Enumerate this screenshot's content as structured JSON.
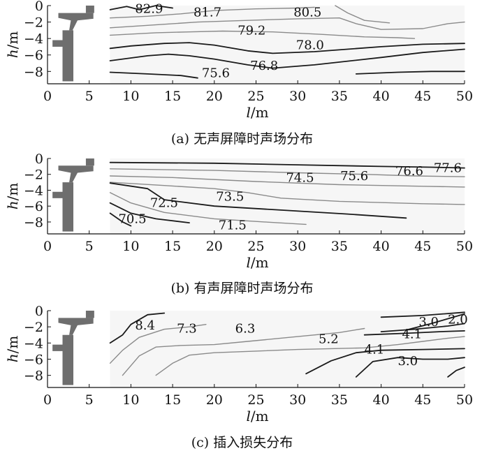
{
  "figure": {
    "colors": {
      "dark_contour": "#1a1a1a",
      "gray_contour": "#8a8a8a",
      "plot_bg": "#f6f6f6",
      "structure": "#6e6e6e"
    }
  },
  "chart_data": [
    {
      "type": "contour",
      "xlabel": "l/m",
      "ylabel": "h/m",
      "xlabel_parts": [
        "l",
        "/m"
      ],
      "ylabel_parts": [
        "h",
        "/m"
      ],
      "xlim": [
        0,
        50
      ],
      "ylim": [
        -9.5,
        0
      ],
      "xticks": [
        0,
        5,
        10,
        15,
        20,
        25,
        30,
        35,
        40,
        45,
        50
      ],
      "yticks": [
        0,
        -2,
        -4,
        -6,
        -8
      ],
      "caption": "(a) 无声屏障时声场分布",
      "contour_labels": [
        {
          "text": "82.9",
          "x": 10.5,
          "y": -0.4
        },
        {
          "text": "81.7",
          "x": 17.5,
          "y": -0.8
        },
        {
          "text": "80.5",
          "x": 29.5,
          "y": -0.8
        },
        {
          "text": "79.2",
          "x": 22.8,
          "y": -3.0
        },
        {
          "text": "78.0",
          "x": 29.8,
          "y": -4.8
        },
        {
          "text": "76.8",
          "x": 24.3,
          "y": -7.3
        },
        {
          "text": "75.6",
          "x": 18.5,
          "y": -8.2
        }
      ],
      "contours": [
        {
          "level": "82.9",
          "tone": "dark",
          "points": [
            [
              7.5,
              -0.5
            ],
            [
              9.5,
              -0.1
            ],
            [
              11,
              -0.5
            ],
            [
              13,
              0
            ],
            [
              15,
              -0.3
            ]
          ]
        },
        {
          "level": "81.7",
          "tone": "gray",
          "points": [
            [
              7.5,
              -1.5
            ],
            [
              12,
              -1.3
            ],
            [
              16,
              -1.0
            ],
            [
              20,
              -0.6
            ],
            [
              25,
              -0.4
            ],
            [
              30,
              -0.3
            ],
            [
              32,
              -0.2
            ]
          ]
        },
        {
          "level": "80.5",
          "tone": "gray",
          "points": [
            [
              7.5,
              -2.7
            ],
            [
              12,
              -2.4
            ],
            [
              18,
              -2.0
            ],
            [
              24,
              -1.8
            ],
            [
              30,
              -1.6
            ],
            [
              35,
              -1.5
            ],
            [
              37,
              -2.2
            ],
            [
              40,
              -2.9
            ],
            [
              45,
              -2.8
            ],
            [
              48,
              -2.2
            ],
            [
              50,
              -2.0
            ]
          ]
        },
        {
          "level": "79.2",
          "tone": "gray",
          "points": [
            [
              7.5,
              -3.6
            ],
            [
              13,
              -3.3
            ],
            [
              17,
              -3.2
            ],
            [
              21,
              -3.1
            ],
            [
              27,
              -3.2
            ],
            [
              33,
              -3.5
            ],
            [
              38,
              -3.8
            ],
            [
              42,
              -3.9
            ],
            [
              44,
              -4.0
            ]
          ]
        },
        {
          "level": "80.5b",
          "tone": "gray",
          "points": [
            [
              34.5,
              0
            ],
            [
              36,
              -0.9
            ],
            [
              38,
              -1.8
            ],
            [
              41,
              -2.1
            ]
          ]
        },
        {
          "level": "78.0",
          "tone": "dark",
          "points": [
            [
              7.5,
              -5.2
            ],
            [
              10,
              -4.9
            ],
            [
              14,
              -4.6
            ],
            [
              17,
              -4.5
            ],
            [
              20,
              -4.8
            ],
            [
              24,
              -5.5
            ],
            [
              27,
              -5.8
            ],
            [
              32,
              -5.6
            ],
            [
              40,
              -5.0
            ],
            [
              45,
              -4.7
            ],
            [
              50,
              -4.6
            ]
          ]
        },
        {
          "level": "76.8",
          "tone": "dark",
          "points": [
            [
              7.5,
              -6.7
            ],
            [
              12,
              -6.1
            ],
            [
              14.5,
              -5.9
            ],
            [
              17,
              -6.1
            ],
            [
              20,
              -6.5
            ],
            [
              24,
              -7.2
            ],
            [
              27,
              -7.6
            ],
            [
              32,
              -7.2
            ],
            [
              40,
              -6.3
            ],
            [
              45,
              -5.7
            ],
            [
              50,
              -5.3
            ]
          ]
        },
        {
          "level": "75.6",
          "tone": "dark",
          "points": [
            [
              7.5,
              -8.1
            ],
            [
              12,
              -8.3
            ],
            [
              16,
              -8.5
            ],
            [
              18,
              -8.8
            ]
          ]
        },
        {
          "level": "75.6b",
          "tone": "dark",
          "points": [
            [
              37,
              -8.3
            ],
            [
              42,
              -8.1
            ],
            [
              46,
              -8.0
            ],
            [
              50,
              -8.0
            ]
          ]
        }
      ]
    },
    {
      "type": "contour",
      "xlabel": "l/m",
      "ylabel": "h/m",
      "xlabel_parts": [
        "l",
        "/m"
      ],
      "ylabel_parts": [
        "h",
        "/m"
      ],
      "xlim": [
        0,
        50
      ],
      "ylim": [
        -9.5,
        0
      ],
      "xticks": [
        0,
        5,
        10,
        15,
        20,
        25,
        30,
        35,
        40,
        45,
        50
      ],
      "yticks": [
        0,
        -2,
        -4,
        -6,
        -8
      ],
      "caption": "(b) 有声屏障时声场分布",
      "contour_labels": [
        {
          "text": "77.6",
          "x": 46.3,
          "y": -1.2
        },
        {
          "text": "76.6",
          "x": 41.7,
          "y": -1.6
        },
        {
          "text": "75.6",
          "x": 35.1,
          "y": -2.2
        },
        {
          "text": "74.5",
          "x": 28.6,
          "y": -2.4
        },
        {
          "text": "73.5",
          "x": 20.2,
          "y": -4.8
        },
        {
          "text": "72.5",
          "x": 12.3,
          "y": -5.6
        },
        {
          "text": "71.5",
          "x": 20.5,
          "y": -8.4
        },
        {
          "text": "70.5",
          "x": 8.5,
          "y": -7.6
        }
      ],
      "contours": [
        {
          "level": "77.6",
          "tone": "dark",
          "points": [
            [
              7.5,
              -0.5
            ],
            [
              20,
              -0.6
            ],
            [
              30,
              -0.8
            ],
            [
              40,
              -1.0
            ],
            [
              46,
              -1.1
            ],
            [
              50,
              -1.2
            ]
          ]
        },
        {
          "level": "76.6",
          "tone": "gray",
          "points": [
            [
              7.5,
              -1.3
            ],
            [
              20,
              -1.5
            ],
            [
              30,
              -1.8
            ],
            [
              38,
              -2.0
            ],
            [
              44,
              -2.2
            ],
            [
              50,
              -2.3
            ]
          ]
        },
        {
          "level": "75.6",
          "tone": "gray",
          "points": [
            [
              7.5,
              -2.2
            ],
            [
              15,
              -2.4
            ],
            [
              25,
              -2.9
            ],
            [
              35,
              -3.3
            ],
            [
              45,
              -3.5
            ],
            [
              50,
              -3.6
            ]
          ]
        },
        {
          "level": "74.5",
          "tone": "gray",
          "points": [
            [
              7.5,
              -3.0
            ],
            [
              14,
              -3.4
            ],
            [
              20,
              -3.8
            ],
            [
              24,
              -4.3
            ],
            [
              28,
              -5.0
            ],
            [
              35,
              -5.4
            ],
            [
              45,
              -5.7
            ],
            [
              50,
              -5.8
            ]
          ]
        },
        {
          "level": "73.5",
          "tone": "dark",
          "points": [
            [
              7.5,
              -3.1
            ],
            [
              12,
              -3.8
            ],
            [
              14,
              -5.2
            ],
            [
              20,
              -6.0
            ],
            [
              28,
              -6.5
            ],
            [
              36,
              -7.0
            ],
            [
              43,
              -7.5
            ]
          ]
        },
        {
          "level": "72.5",
          "tone": "gray",
          "points": [
            [
              7.5,
              -4.3
            ],
            [
              10,
              -5.6
            ],
            [
              14,
              -6.8
            ],
            [
              20,
              -7.6
            ],
            [
              26,
              -8.0
            ],
            [
              31,
              -8.3
            ]
          ]
        },
        {
          "level": "71.5",
          "tone": "dark",
          "points": [
            [
              7.5,
              -5.6
            ],
            [
              10,
              -6.9
            ],
            [
              13,
              -7.6
            ],
            [
              17,
              -8.1
            ]
          ]
        },
        {
          "level": "70.5",
          "tone": "dark",
          "points": [
            [
              7.5,
              -6.9
            ],
            [
              9,
              -8.0
            ],
            [
              10,
              -8.5
            ]
          ]
        }
      ]
    },
    {
      "type": "contour",
      "xlabel": "l/m",
      "ylabel": "h/m",
      "xlabel_parts": [
        "l",
        "/m"
      ],
      "ylabel_parts": [
        "h",
        "/m"
      ],
      "xlim": [
        0,
        50
      ],
      "ylim": [
        -9.5,
        0
      ],
      "xticks": [
        0,
        5,
        10,
        15,
        20,
        25,
        30,
        35,
        40,
        45,
        50
      ],
      "yticks": [
        0,
        -2,
        -4,
        -6,
        -8
      ],
      "caption": "(c) 插入损失分布",
      "contour_labels": [
        {
          "text": "8.4",
          "x": 10.5,
          "y": -1.8
        },
        {
          "text": "7.3",
          "x": 15.5,
          "y": -2.2
        },
        {
          "text": "6.3",
          "x": 22.5,
          "y": -2.2
        },
        {
          "text": "5.2",
          "x": 32.5,
          "y": -3.5
        },
        {
          "text": "4.1",
          "x": 38.0,
          "y": -4.8
        },
        {
          "text": "3.0",
          "x": 42.0,
          "y": -6.2
        },
        {
          "text": "3.0",
          "x": 44.5,
          "y": -1.4
        },
        {
          "text": "2.0",
          "x": 48.0,
          "y": -1.1
        },
        {
          "text": "4.1",
          "x": 42.5,
          "y": -2.9
        }
      ],
      "contours": [
        {
          "level": "8.4",
          "tone": "dark",
          "points": [
            [
              7.5,
              -4.0
            ],
            [
              9,
              -3.0
            ],
            [
              10,
              -1.7
            ],
            [
              12,
              -0.5
            ],
            [
              14,
              -0.3
            ]
          ]
        },
        {
          "level": "7.3",
          "tone": "gray",
          "points": [
            [
              7.5,
              -6.5
            ],
            [
              9,
              -4.9
            ],
            [
              11,
              -3.3
            ],
            [
              14,
              -2.3
            ],
            [
              17,
              -2.0
            ],
            [
              19,
              -1.7
            ]
          ]
        },
        {
          "level": "6.3",
          "tone": "gray",
          "points": [
            [
              9,
              -8.0
            ],
            [
              11,
              -5.6
            ],
            [
              13,
              -4.5
            ],
            [
              16,
              -4.3
            ],
            [
              20,
              -4.2
            ],
            [
              24,
              -3.8
            ],
            [
              30,
              -3.2
            ],
            [
              35,
              -2.7
            ],
            [
              38,
              -2.2
            ]
          ]
        },
        {
          "level": "5.2",
          "tone": "gray",
          "points": [
            [
              13,
              -8.0
            ],
            [
              15,
              -6.5
            ],
            [
              17,
              -5.5
            ],
            [
              20,
              -5.2
            ],
            [
              25,
              -5.0
            ],
            [
              30,
              -4.8
            ],
            [
              34,
              -4.7
            ],
            [
              38,
              -4.6
            ],
            [
              42,
              -4.2
            ],
            [
              45,
              -3.8
            ],
            [
              48,
              -3.4
            ],
            [
              50,
              -3.2
            ]
          ]
        },
        {
          "level": "4.1",
          "tone": "dark",
          "points": [
            [
              31,
              -7.8
            ],
            [
              34,
              -6.2
            ],
            [
              37,
              -5.2
            ],
            [
              40,
              -4.9
            ],
            [
              45,
              -4.8
            ],
            [
              50,
              -4.7
            ]
          ]
        },
        {
          "level": "3.0",
          "tone": "dark",
          "points": [
            [
              37,
              -8.2
            ],
            [
              39,
              -6.3
            ],
            [
              42,
              -5.8
            ],
            [
              45,
              -6.0
            ],
            [
              48,
              -6.0
            ],
            [
              50,
              -5.8
            ]
          ]
        },
        {
          "level": "3.0a",
          "tone": "dark",
          "points": [
            [
              48,
              -8.2
            ],
            [
              49,
              -7.4
            ],
            [
              50,
              -7.0
            ]
          ]
        },
        {
          "level": "2.0",
          "tone": "dark",
          "points": [
            [
              43,
              -2.4
            ],
            [
              46,
              -1.6
            ],
            [
              50,
              -0.4
            ]
          ]
        },
        {
          "level": "3.0b",
          "tone": "dark",
          "points": [
            [
              40,
              -2.6
            ],
            [
              44,
              -2.3
            ],
            [
              48,
              -1.9
            ],
            [
              50,
              -1.6
            ]
          ]
        },
        {
          "level": "4.1b",
          "tone": "dark",
          "points": [
            [
              38,
              -3.0
            ],
            [
              43,
              -2.8
            ],
            [
              47,
              -2.6
            ],
            [
              50,
              -2.5
            ]
          ]
        },
        {
          "level": "top",
          "tone": "dark",
          "points": [
            [
              40,
              -0.8
            ],
            [
              45,
              -0.6
            ],
            [
              50,
              -0.2
            ]
          ]
        }
      ]
    }
  ]
}
